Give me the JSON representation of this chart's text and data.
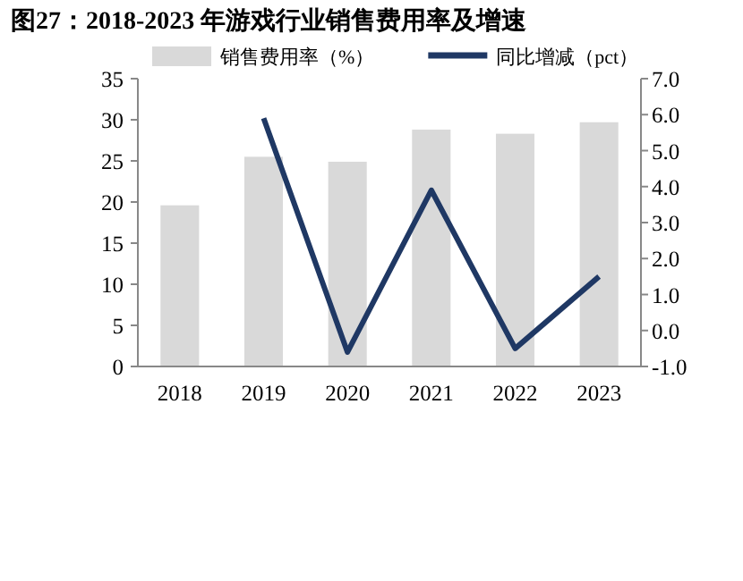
{
  "chart_data": {
    "type": "bar",
    "title": "图27：2018-2023 年游戏行业销售费用率及增速",
    "categories": [
      "2018",
      "2019",
      "2020",
      "2021",
      "2022",
      "2023"
    ],
    "series": [
      {
        "name": "销售费用率（%）",
        "color": "#d9d9d9",
        "values": [
          19.6,
          25.5,
          24.9,
          28.8,
          28.3,
          29.7
        ]
      },
      {
        "name": "同比增减（pct）",
        "type": "line",
        "axis": "y2",
        "color": "#1f3864",
        "values": [
          null,
          5.9,
          -0.6,
          3.9,
          -0.5,
          1.5
        ]
      }
    ],
    "ylim": [
      0,
      35
    ],
    "yticks": [
      0,
      5,
      10,
      15,
      20,
      25,
      30,
      35
    ],
    "y2lim": [
      -1,
      7
    ],
    "y2ticks": [
      {
        "value": -1,
        "label": "-1.0"
      },
      {
        "value": 0,
        "label": "0.0"
      },
      {
        "value": 1,
        "label": "1.0"
      },
      {
        "value": 2,
        "label": "2.0"
      },
      {
        "value": 3,
        "label": "3.0"
      },
      {
        "value": 4,
        "label": "4.0"
      },
      {
        "value": 5,
        "label": "5.0"
      },
      {
        "value": 6,
        "label": "6.0"
      },
      {
        "value": 7,
        "label": "7.0"
      }
    ],
    "legend": "top",
    "grid": false
  }
}
